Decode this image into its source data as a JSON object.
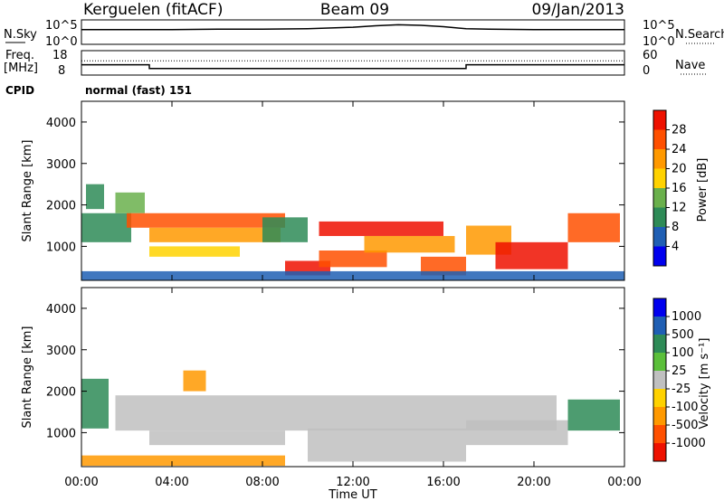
{
  "header": {
    "station": "Kerguelen (fitACF)",
    "beam": "Beam 09",
    "date": "09/Jan/2013"
  },
  "noise_panel": {
    "left_label": "N.Sky",
    "right_label": "N.Search",
    "left_ticks": [
      "10^5",
      "10^0"
    ],
    "right_ticks": [
      "10^5",
      "10^0"
    ]
  },
  "freq_panel": {
    "left_label_top": "Freq.",
    "left_label_bottom": "[MHz]",
    "right_label": "Nave",
    "left_ticks": [
      "18",
      "8"
    ],
    "right_ticks": [
      "60",
      "0"
    ]
  },
  "cpid": {
    "label": "CPID",
    "value": "normal (fast) 151"
  },
  "x_axis": {
    "label": "Time UT",
    "ticks": [
      "00:00",
      "04:00",
      "08:00",
      "12:00",
      "16:00",
      "20:00",
      "00:00"
    ]
  },
  "power_panel": {
    "ylabel": "Slant Range [km]",
    "yticks": [
      "4000",
      "3000",
      "2000",
      "1000"
    ],
    "colorbar_label": "Power [dB]",
    "colorbar_ticks": [
      "28",
      "24",
      "20",
      "16",
      "12",
      "8",
      "4"
    ]
  },
  "velocity_panel": {
    "ylabel": "Slant Range [km]",
    "yticks": [
      "4000",
      "3000",
      "2000",
      "1000"
    ],
    "colorbar_label": "Velocity [m s⁻¹]",
    "colorbar_ticks": [
      "1000",
      "500",
      "100",
      "25",
      "-25",
      "-100",
      "-500",
      "-1000"
    ]
  },
  "chart_data": [
    {
      "type": "line",
      "title": "N.Sky / N.Search",
      "x": [
        0,
        2,
        4,
        6,
        8,
        10,
        12,
        13,
        14,
        15,
        16,
        17,
        18,
        20,
        22,
        24
      ],
      "series": [
        {
          "name": "N.Sky",
          "values": [
            3.0,
            3.0,
            3.0,
            3.1,
            3.1,
            3.2,
            3.5,
            3.8,
            4.0,
            3.9,
            3.6,
            3.2,
            3.1,
            3.0,
            3.0,
            3.0
          ]
        }
      ],
      "xlim": [
        0,
        24
      ],
      "ylim": [
        0,
        5
      ],
      "log_scale_y": true
    },
    {
      "type": "line",
      "title": "Frequency",
      "x": [
        0,
        3,
        3,
        17,
        17,
        24
      ],
      "series": [
        {
          "name": "Freq.",
          "values": [
            12.2,
            12.2,
            10.7,
            10.7,
            12.2,
            12.2
          ]
        },
        {
          "name": "Nave",
          "values": [
            35,
            35,
            35,
            35,
            35,
            35
          ]
        }
      ],
      "xlim": [
        0,
        24
      ],
      "ylim": [
        8,
        18
      ]
    },
    {
      "type": "heatmap",
      "title": "Power",
      "xlabel": "Time UT",
      "ylabel": "Slant Range [km]",
      "xlim": [
        0,
        24
      ],
      "ylim": [
        180,
        4500
      ],
      "colorbar": {
        "label": "Power [dB]",
        "range": [
          0,
          32
        ],
        "ticks": [
          4,
          8,
          12,
          16,
          20,
          24,
          28
        ]
      },
      "colors": [
        "#0000ee",
        "#1f5fb4",
        "#2e8b57",
        "#6ab04c",
        "#ffd200",
        "#ff9900",
        "#ff5000",
        "#ee1100"
      ],
      "cells": [
        {
          "t0": 0.0,
          "t1": 2.2,
          "r0": 1100,
          "r1": 1800,
          "level": 2
        },
        {
          "t0": 0.2,
          "t1": 1.0,
          "r0": 1900,
          "r1": 2500,
          "level": 2
        },
        {
          "t0": 1.5,
          "t1": 2.8,
          "r0": 1800,
          "r1": 2300,
          "level": 3
        },
        {
          "t0": 2.0,
          "t1": 9.0,
          "r0": 1450,
          "r1": 1800,
          "level": 6
        },
        {
          "t0": 3.0,
          "t1": 8.8,
          "r0": 1100,
          "r1": 1450,
          "level": 5
        },
        {
          "t0": 3.0,
          "t1": 7.0,
          "r0": 750,
          "r1": 1000,
          "level": 4
        },
        {
          "t0": 8.0,
          "t1": 10.0,
          "r0": 1100,
          "r1": 1700,
          "level": 2
        },
        {
          "t0": 9.0,
          "t1": 11.0,
          "r0": 300,
          "r1": 650,
          "level": 7
        },
        {
          "t0": 10.5,
          "t1": 13.5,
          "r0": 500,
          "r1": 900,
          "level": 6
        },
        {
          "t0": 10.5,
          "t1": 16.0,
          "r0": 1250,
          "r1": 1600,
          "level": 7
        },
        {
          "t0": 12.5,
          "t1": 16.5,
          "r0": 850,
          "r1": 1250,
          "level": 5
        },
        {
          "t0": 15.0,
          "t1": 17.0,
          "r0": 300,
          "r1": 750,
          "level": 6
        },
        {
          "t0": 17.0,
          "t1": 19.0,
          "r0": 800,
          "r1": 1500,
          "level": 5
        },
        {
          "t0": 18.3,
          "t1": 21.5,
          "r0": 450,
          "r1": 1100,
          "level": 7
        },
        {
          "t0": 21.5,
          "t1": 23.8,
          "r0": 1100,
          "r1": 1800,
          "level": 6
        },
        {
          "t0": 0.0,
          "t1": 24.0,
          "r0": 180,
          "r1": 400,
          "level": 1
        }
      ]
    },
    {
      "type": "heatmap",
      "title": "Velocity",
      "xlabel": "Time UT",
      "ylabel": "Slant Range [km]",
      "xlim": [
        0,
        24
      ],
      "ylim": [
        180,
        4500
      ],
      "colorbar": {
        "label": "Velocity [m s⁻¹]",
        "range": [
          -1200,
          1200
        ],
        "ticks": [
          1000,
          500,
          100,
          25,
          -25,
          -100,
          -500,
          -1000
        ]
      },
      "colors": [
        "#ee1100",
        "#ff5000",
        "#ff9900",
        "#ffd200",
        "#c0c0c0",
        "#5bbf3a",
        "#2e8b57",
        "#1f5fb4",
        "#0000ee"
      ],
      "cells": [
        {
          "t0": 0.0,
          "t1": 1.2,
          "r0": 1100,
          "r1": 2300,
          "level": 6
        },
        {
          "t0": 1.5,
          "t1": 21.0,
          "r0": 1050,
          "r1": 1900,
          "level": 4
        },
        {
          "t0": 3.0,
          "t1": 9.0,
          "r0": 700,
          "r1": 1050,
          "level": 4
        },
        {
          "t0": 10.0,
          "t1": 17.0,
          "r0": 300,
          "r1": 1100,
          "level": 4
        },
        {
          "t0": 17.0,
          "t1": 21.5,
          "r0": 700,
          "r1": 1300,
          "level": 4
        },
        {
          "t0": 21.5,
          "t1": 23.8,
          "r0": 1050,
          "r1": 1800,
          "level": 6
        },
        {
          "t0": 0.0,
          "t1": 9.0,
          "r0": 200,
          "r1": 450,
          "level": 2
        },
        {
          "t0": 4.5,
          "t1": 5.5,
          "r0": 2000,
          "r1": 2500,
          "level": 2
        }
      ]
    }
  ]
}
